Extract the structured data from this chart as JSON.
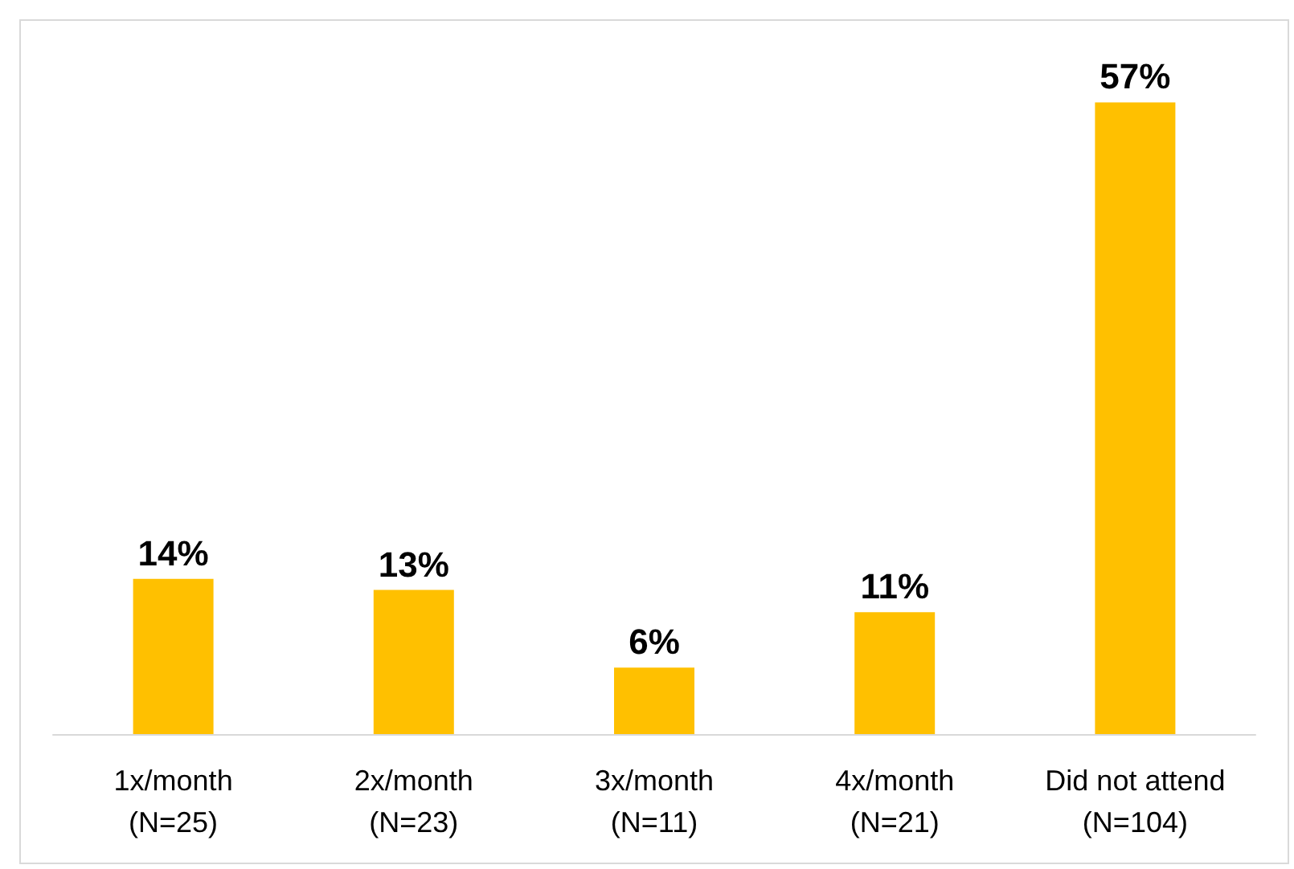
{
  "chart_data": {
    "type": "bar",
    "categories": [
      "1x/month\n(N=25)",
      "2x/month\n(N=23)",
      "3x/month\n(N=11)",
      "4x/month\n(N=21)",
      "Did not attend\n(N=104)"
    ],
    "values": [
      14,
      13,
      6,
      11,
      57
    ],
    "value_labels": [
      "14%",
      "13%",
      "6%",
      "11%",
      "57%"
    ],
    "color": "#ffc000"
  }
}
